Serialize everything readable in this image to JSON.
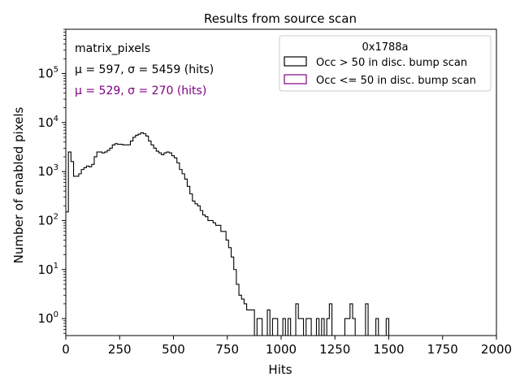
{
  "chart_data": {
    "type": "histogram",
    "title": "Results from source scan",
    "xlabel": "Hits",
    "ylabel": "Number of enabled pixels",
    "xlim": [
      0,
      2000
    ],
    "ylog": true,
    "ylim": [
      0.45,
      800000
    ],
    "x_ticks": [
      0,
      250,
      500,
      750,
      1000,
      1250,
      1500,
      1750,
      2000
    ],
    "x_tick_labels": [
      "0",
      "250",
      "500",
      "750",
      "1000",
      "1250",
      "1500",
      "1750",
      "2000"
    ],
    "y_tick_exponents": [
      0,
      1,
      2,
      3,
      4,
      5
    ],
    "y_tick_base": "10",
    "bin_width": 12,
    "annotations": {
      "label": "matrix_pixels",
      "stats_all": "μ = 597, σ = 5459 (hits)",
      "stats_low": "μ = 529, σ = 270 (hits)"
    },
    "legend": {
      "title": "0x1788a",
      "position": "top-right",
      "entries": [
        "Occ > 50 in disc. bump scan",
        "Occ <= 50 in disc. bump scan"
      ]
    },
    "series": [
      {
        "name": "Occ > 50 in disc. bump scan",
        "color": "#000000",
        "values": [
          150,
          2500,
          1600,
          800,
          800,
          900,
          1100,
          1200,
          1300,
          1250,
          1400,
          2000,
          2500,
          2500,
          2400,
          2500,
          2700,
          3000,
          3500,
          3700,
          3600,
          3600,
          3500,
          3500,
          3500,
          4200,
          5000,
          5500,
          5800,
          6200,
          5900,
          5300,
          4200,
          3500,
          3000,
          2600,
          2400,
          2200,
          2400,
          2500,
          2400,
          2100,
          1900,
          1500,
          1100,
          900,
          700,
          500,
          350,
          250,
          220,
          200,
          160,
          130,
          120,
          100,
          100,
          90,
          80,
          80,
          60,
          60,
          40,
          28,
          18,
          10,
          5,
          3,
          2.5,
          2,
          1.5,
          1.5,
          1.5,
          0.45,
          1,
          1,
          0.45,
          0.45,
          1.5,
          0.45,
          1,
          1,
          0.45,
          0.45,
          1,
          0.45,
          1,
          0.45,
          0.45,
          2,
          1,
          1,
          0.45,
          1,
          1,
          0.45,
          0.45,
          1,
          0.45,
          1,
          0.45,
          1,
          2,
          0.45,
          0.45,
          0.45,
          0.45,
          0.45,
          1,
          1,
          2,
          1,
          0.45,
          0.45,
          0.45,
          0.45,
          2,
          0.45,
          0.45,
          0.45,
          1,
          0.45,
          0.45,
          0.45,
          1,
          0.45,
          0.45,
          0.45,
          0.45,
          0.45,
          0.45,
          0.45,
          0.45,
          0.45,
          0.45,
          0.45,
          0.45,
          0.45,
          0.45,
          0.45,
          0.45,
          0.45,
          0.45,
          0.45,
          0.45,
          0.45,
          0.45,
          0.45,
          0.45,
          0.45,
          0.45,
          0.45,
          0.45,
          0.45,
          0.45,
          0.45,
          0.45,
          0.45,
          0.45,
          0.45,
          0.45,
          0.45,
          0.45,
          0.45,
          0.45,
          0.45,
          0.45,
          0.45
        ]
      },
      {
        "name": "Occ <= 50 in disc. bump scan",
        "color": "#800080",
        "values": [
          0.45,
          0.45,
          0.45,
          0.45,
          0.45,
          0.45,
          0.45,
          0.45,
          0.45,
          0.45,
          0.45,
          0.45,
          0.45,
          0.45,
          0.45,
          0.45,
          0.45,
          0.45,
          0.45,
          0.45,
          0.45,
          0.45,
          0.45,
          0.45,
          0.45,
          0.45,
          0.45,
          0.45,
          0.45,
          0.45,
          0.45,
          0.45,
          0.45,
          0.45,
          0.45,
          0.45,
          0.45,
          0.45,
          0.45,
          0.45,
          0.45,
          0.45,
          0.45,
          0.45,
          0.45,
          0.45,
          0.45,
          0.45,
          0.45,
          0.45,
          0.45,
          0.45,
          0.45,
          0.45,
          0.45,
          0.45,
          0.45,
          0.45,
          0.45,
          0.45,
          0.45,
          0.45,
          0.45,
          0.45,
          0.45,
          0.45,
          0.45,
          0.45,
          0.45,
          0.45,
          0.45,
          0.45,
          0.45,
          0.45,
          0.45,
          0.45,
          0.45,
          0.45,
          0.45,
          0.45,
          0.45,
          0.45,
          0.45,
          0.45,
          0.45,
          0.45,
          0.45,
          0.45,
          0.45,
          0.45,
          0.45,
          0.45,
          0.45,
          0.45,
          0.45,
          0.45,
          0.45,
          0.45,
          0.45,
          0.45,
          0.45,
          0.45,
          0.45,
          0.45,
          0.45,
          0.45,
          0.45,
          0.45,
          0.45,
          0.45,
          0.45,
          0.45,
          0.45,
          0.45,
          0.45,
          0.45,
          0.45,
          0.45,
          0.45,
          0.45,
          0.45,
          0.45,
          0.45,
          0.45,
          0.45,
          0.45,
          0.45,
          0.45,
          0.45,
          0.45,
          0.45,
          0.45,
          0.45,
          0.45,
          0.45,
          0.45,
          0.45,
          0.45,
          0.45,
          0.45,
          0.45,
          0.45,
          0.45,
          0.45,
          0.45,
          0.45,
          0.45,
          0.45,
          0.45,
          0.45,
          0.45,
          0.45,
          0.45,
          0.45,
          0.45,
          0.45,
          0.45,
          0.45,
          0.45,
          0.45,
          0.45,
          0.45,
          0.45,
          0.45,
          0.45,
          0.45,
          0.45
        ]
      }
    ]
  }
}
